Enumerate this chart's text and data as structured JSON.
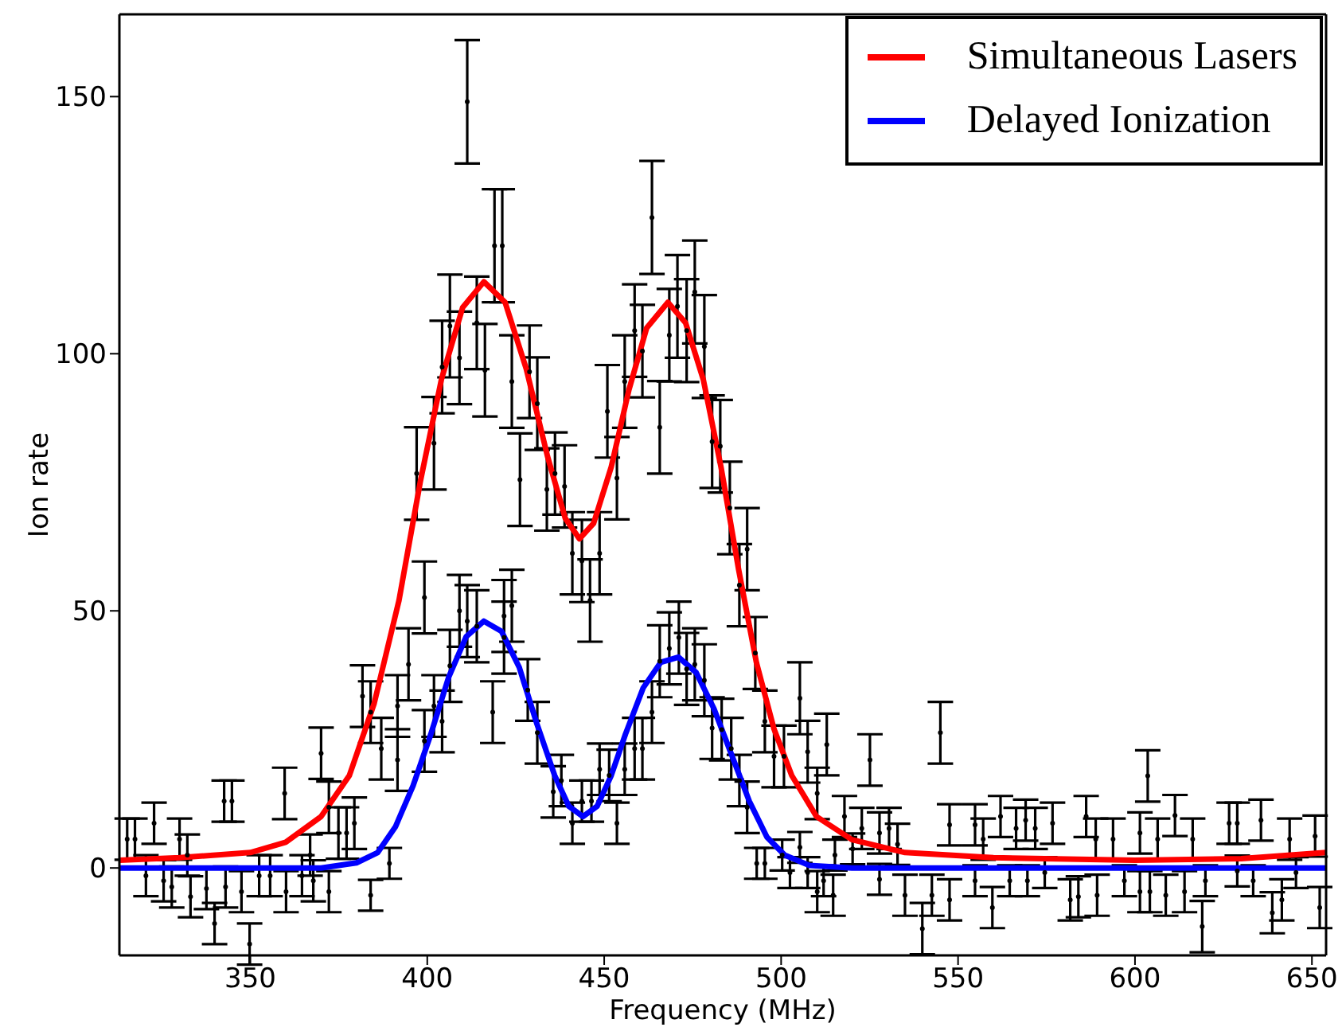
{
  "chart_data": {
    "type": "scatter",
    "xlabel": "Frequency (MHz)",
    "ylabel": "Ion rate",
    "xlim": [
      313,
      654
    ],
    "xticks": [
      350,
      400,
      450,
      500,
      550,
      600,
      650
    ],
    "ylim": [
      -17,
      166
    ],
    "yticks": [
      0,
      50,
      100,
      150
    ],
    "legend": "top right",
    "series": [
      {
        "marker": "circle",
        "color": "#000000",
        "x": [
          315.2,
          317.4,
          320.5,
          322.8,
          325.5,
          327.8,
          330,
          332.2,
          333.1,
          337.6,
          339.9,
          342.6,
          343,
          344.8,
          347.5,
          349.8,
          352.5,
          355.6,
          359.7,
          360.1,
          364.6,
          366.9,
          367.8,
          370,
          372.2,
          372.2,
          374.9,
          377.2,
          379.4,
          381.7,
          384,
          384,
          387,
          389.3,
          391.6,
          391.6,
          394.7,
          397,
          399.2,
          399.2,
          401.9,
          401.9,
          404.2,
          404.2,
          406.4,
          406.4,
          409.1,
          409.1,
          411.3,
          411.3,
          414,
          414,
          416.3,
          418.5,
          419,
          421.2,
          421.7,
          421.7,
          423.9,
          423.9,
          426.2,
          428.4,
          428.9,
          431.1,
          431.1,
          433.8,
          435.6,
          436.1,
          437.9,
          438.8,
          441,
          441,
          443.7,
          443.7,
          446,
          446.4,
          448.7,
          448.7,
          450.9,
          451.4,
          453.6,
          453.6,
          455.8,
          455.8,
          458.6,
          458.6,
          460.8,
          460.8,
          463.5,
          463.5,
          465.7,
          465.7,
          468.4,
          468.4,
          470.7,
          471.1,
          473.3,
          473.3,
          475.6,
          475.6,
          478.3,
          478.3,
          480.5,
          480.5,
          482.8,
          483.2,
          485.5,
          485.9,
          488.2,
          488.2,
          490.4,
          490.4,
          492.7,
          493.1,
          495.4,
          495.4,
          498,
          500.3,
          500.8,
          502.5,
          505.3,
          505.3,
          507.5,
          507.5,
          510.2,
          510.2,
          512,
          512.9,
          514.7,
          515.2,
          517.9,
          520.2,
          522.8,
          525.1,
          527.8,
          527.8,
          530.5,
          532.9,
          535,
          539.9,
          542.6,
          545,
          547.6,
          547.6,
          554.8,
          554.8,
          557.1,
          559.7,
          562,
          564.6,
          566.4,
          569.1,
          569.6,
          571.8,
          574.5,
          576.7,
          581.7,
          584,
          586.2,
          588.9,
          589.3,
          593.8,
          597,
          601.4,
          601.4,
          603.6,
          604.2,
          606.4,
          608.7,
          611.3,
          614,
          616.3,
          619,
          619.9,
          626.6,
          628.9,
          628.9,
          633.4,
          635.6,
          638.8,
          641.5,
          643.7,
          645.5,
          650.9,
          652.2
        ],
        "values": [
          5.6,
          5.6,
          -1.5,
          8.7,
          -2.5,
          -3.7,
          5.6,
          2.5,
          -5.6,
          -4,
          -10.8,
          13,
          -3.7,
          13,
          -4.6,
          -14.8,
          -1.5,
          -1.5,
          14.5,
          -4.6,
          -1.5,
          2.5,
          -2.5,
          22.3,
          11.8,
          -4.6,
          6.8,
          6.8,
          8.7,
          33.4,
          30.3,
          -5.3,
          23.2,
          0.9,
          31.5,
          21,
          39.6,
          76.7,
          24.7,
          52.6,
          82.6,
          31.5,
          97.4,
          28.5,
          105.4,
          39.3,
          99.2,
          50,
          149,
          48,
          106,
          47,
          96.8,
          30.3,
          121,
          121,
          49,
          44.8,
          94.6,
          51,
          75.5,
          34.6,
          96.5,
          90.3,
          26.3,
          73.6,
          14.8,
          76.7,
          17,
          74.2,
          61.2,
          8.7,
          59.7,
          13,
          52,
          13,
          61.2,
          19.2,
          88.8,
          18,
          75.8,
          8.7,
          94.6,
          19.2,
          104.5,
          23.2,
          100.5,
          23.2,
          126.5,
          30.3,
          85.7,
          40.2,
          103.6,
          42.7,
          109.2,
          44.8,
          104.5,
          38.7,
          112,
          39.6,
          101.4,
          36.5,
          82.9,
          27.2,
          82,
          26.9,
          70,
          23.2,
          55,
          17,
          62,
          11.8,
          41.8,
          0.9,
          28.5,
          0.9,
          21.7,
          2.5,
          21.7,
          -0.9,
          33,
          4,
          22.6,
          -0.9,
          14.5,
          -4.6,
          -2.5,
          24,
          -5.3,
          2.5,
          10,
          3.7,
          7.7,
          21,
          6.8,
          -2.2,
          7.7,
          4.6,
          -5.3,
          -11.8,
          -5.3,
          26.3,
          8.4,
          -6.2,
          8.4,
          -2.5,
          5.6,
          -7.7,
          10,
          -2.5,
          7.7,
          9.3,
          -2.5,
          7.7,
          -0.9,
          8.7,
          -6.2,
          -5.6,
          10,
          5.6,
          -5.3,
          5.6,
          -2.5,
          6.8,
          -4.6,
          17.9,
          -4.6,
          5.6,
          -5.3,
          10.2,
          -4.6,
          5.6,
          -11.4,
          -2.5,
          8.7,
          8.7,
          -0.6,
          -2.5,
          9.3,
          -8.7,
          -6.2,
          5.6,
          -0.9,
          6.2,
          -7.7
        ],
        "errors": [
          4,
          4,
          4,
          4,
          4,
          4,
          4,
          4,
          4,
          4,
          4,
          4,
          4,
          4,
          4,
          4,
          4,
          4,
          5,
          4,
          4,
          4,
          4,
          5,
          5,
          4,
          5,
          5,
          5,
          6,
          6,
          3,
          6,
          3,
          6,
          6,
          7,
          9,
          6,
          7,
          9,
          6,
          9,
          6,
          10,
          7,
          9,
          7,
          12,
          7,
          9,
          7,
          9,
          6,
          11,
          11,
          7,
          7,
          9,
          7,
          9,
          6,
          9,
          9,
          6,
          8,
          5,
          8,
          5,
          8,
          8,
          4,
          8,
          4,
          8,
          4,
          8,
          5,
          9,
          5,
          8,
          4,
          9,
          5,
          9,
          6,
          9,
          6,
          11,
          6,
          9,
          7,
          9,
          7,
          10,
          7,
          10,
          7,
          10,
          7,
          10,
          7,
          9,
          6,
          9,
          6,
          9,
          6,
          8,
          5,
          8,
          5,
          7,
          3,
          6,
          3,
          6,
          3,
          6,
          3,
          7,
          3,
          6,
          3,
          5,
          4,
          3,
          6,
          4,
          3,
          4,
          3,
          4,
          5,
          4,
          3,
          4,
          4,
          4,
          5,
          4,
          6,
          4,
          4,
          4,
          3,
          4,
          4,
          4,
          3,
          4,
          4,
          3,
          4,
          3,
          4,
          4,
          4,
          4,
          4,
          4,
          4,
          3,
          4,
          4,
          5,
          4,
          4,
          4,
          4,
          4,
          4,
          5,
          3,
          4,
          4,
          3,
          3,
          4,
          4,
          4,
          4,
          3,
          4,
          4
        ]
      },
      {
        "type": "line",
        "name": "Simultaneous Lasers",
        "color": "#ff0000",
        "x": [
          313,
          330,
          350,
          360,
          370,
          378,
          385,
          392,
          398,
          404,
          410,
          416,
          422,
          428,
          434,
          439,
          443,
          447,
          452,
          457,
          462,
          468,
          473,
          478,
          483,
          488,
          493,
          498,
          503,
          510,
          520,
          535,
          560,
          600,
          630,
          654
        ],
        "values": [
          1.5,
          2,
          3,
          5,
          10,
          18,
          32,
          52,
          75,
          95,
          109,
          114,
          110,
          97,
          80,
          68,
          64,
          67,
          78,
          93,
          105,
          110,
          106,
          95,
          78,
          58,
          40,
          27,
          18,
          10,
          5.5,
          3,
          2,
          1.5,
          1.8,
          3
        ]
      },
      {
        "type": "line",
        "name": "Delayed Ionization",
        "color": "#0000ff",
        "x": [
          313,
          370,
          380,
          386,
          391,
          396,
          401,
          406,
          411,
          416,
          421,
          426,
          431,
          436,
          440,
          444,
          448,
          452,
          456,
          461,
          466,
          471,
          476,
          481,
          486,
          491,
          496,
          501,
          508,
          520,
          654
        ],
        "values": [
          0,
          0,
          1,
          3,
          8,
          16,
          26,
          37,
          45,
          48,
          46,
          39,
          28,
          18,
          12,
          10,
          12,
          18,
          26,
          35,
          40,
          41,
          38,
          31,
          22,
          13,
          6,
          2.5,
          0.5,
          0,
          0
        ]
      }
    ]
  }
}
